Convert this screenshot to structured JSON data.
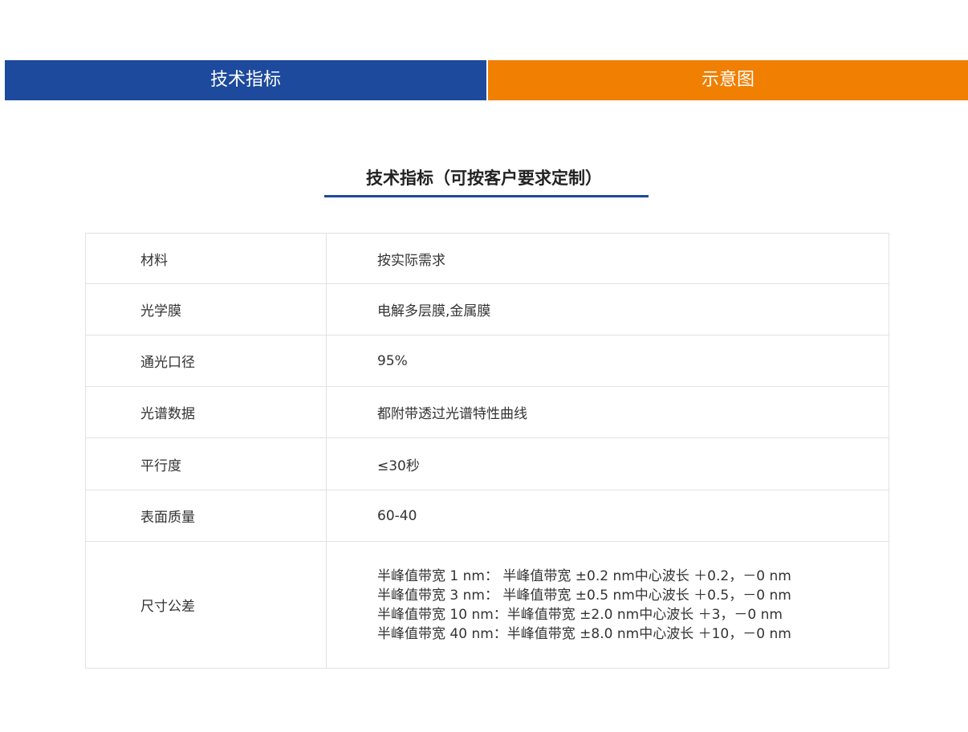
{
  "tabs": [
    {
      "label": "技术指标",
      "color": "#1d4a9c"
    },
    {
      "label": "示意图",
      "color": "#f07f02"
    }
  ],
  "section_title": "技术指标（可按客户要求定制）",
  "rows": [
    {
      "label": "材料",
      "value": "按实际需求"
    },
    {
      "label": "光学膜",
      "value": "电解多层膜,金属膜"
    },
    {
      "label": "通光口径",
      "value": "95%"
    },
    {
      "label": "光谱数据",
      "value": "都附带透过光谱特性曲线"
    },
    {
      "label": "平行度",
      "value": "≤30秒"
    },
    {
      "label": "表面质量",
      "value": "60-40"
    },
    {
      "label": "尺寸公差",
      "lines": [
        "半峰值带宽 1 nm： 半峰值带宽 ±0.2 nm中心波长 ＋0.2，－0 nm",
        "半峰值带宽 3 nm： 半峰值带宽 ±0.5 nm中心波长 ＋0.5，－0 nm",
        "半峰值带宽 10 nm：半峰值带宽 ±2.0 nm中心波长 ＋3，－0 nm",
        "半峰值带宽 40 nm：半峰值带宽 ±8.0 nm中心波长 ＋10，－0 nm"
      ]
    }
  ]
}
